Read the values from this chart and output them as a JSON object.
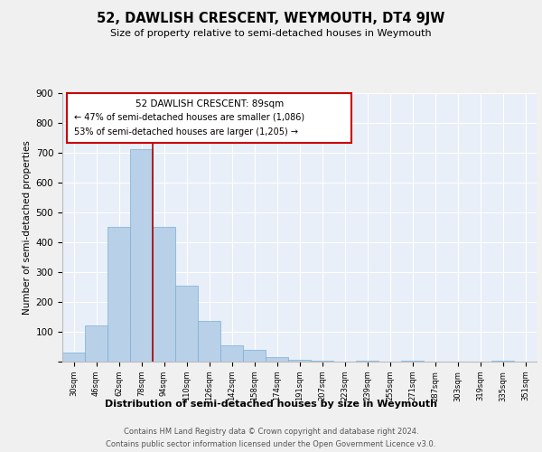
{
  "title": "52, DAWLISH CRESCENT, WEYMOUTH, DT4 9JW",
  "subtitle": "Size of property relative to semi-detached houses in Weymouth",
  "xlabel": "Distribution of semi-detached houses by size in Weymouth",
  "ylabel": "Number of semi-detached properties",
  "categories": [
    "30sqm",
    "46sqm",
    "62sqm",
    "78sqm",
    "94sqm",
    "110sqm",
    "126sqm",
    "142sqm",
    "158sqm",
    "174sqm",
    "191sqm",
    "207sqm",
    "223sqm",
    "239sqm",
    "255sqm",
    "271sqm",
    "287sqm",
    "303sqm",
    "319sqm",
    "335sqm",
    "351sqm"
  ],
  "values": [
    30,
    120,
    450,
    710,
    450,
    255,
    135,
    55,
    40,
    15,
    5,
    2,
    0,
    2,
    0,
    2,
    0,
    0,
    0,
    2,
    0
  ],
  "bar_color": "#b8d0e8",
  "bar_edge_color": "#7aafd4",
  "background_color": "#e8eff8",
  "grid_color": "#ffffff",
  "annotation_box_color": "#cc0000",
  "property_line_color": "#aa0000",
  "property_line_x": 3.5,
  "annotation_title": "52 DAWLISH CRESCENT: 89sqm",
  "annotation_line1": "← 47% of semi-detached houses are smaller (1,086)",
  "annotation_line2": "53% of semi-detached houses are larger (1,205) →",
  "footer_line1": "Contains HM Land Registry data © Crown copyright and database right 2024.",
  "footer_line2": "Contains public sector information licensed under the Open Government Licence v3.0.",
  "fig_bg": "#f0f0f0",
  "ylim": [
    0,
    900
  ],
  "yticks": [
    0,
    100,
    200,
    300,
    400,
    500,
    600,
    700,
    800,
    900
  ]
}
